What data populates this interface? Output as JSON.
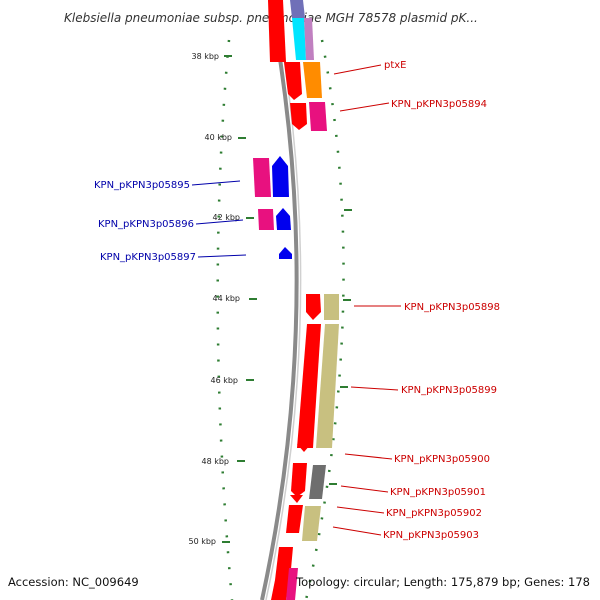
{
  "title": "Klebsiella pneumoniae subsp. pneumoniae MGH 78578 plasmid pK...",
  "footer": {
    "accession": "Accession: NC_009649",
    "summary": "Topology: circular; Length: 175,879 bp; Genes: 178"
  },
  "colors": {
    "forward_label": "#cc0000",
    "reverse_label": "#0000aa",
    "backbone": "#8a8a8a",
    "gc_skew": "#2e7d32",
    "cds_forward": "#ff0000",
    "cds_reverse": "#0000ee",
    "pink": "#e8117f",
    "khaki": "#c8c080",
    "orange": "#ff8c00",
    "gray": "#6e6e6e",
    "cyan": "#00e5ff",
    "purple": "#8080c0"
  },
  "ticks": [
    "38 kbp",
    "40 kbp",
    "42 kbp",
    "44 kbp",
    "46 kbp",
    "48 kbp",
    "50 kbp"
  ],
  "labels": {
    "ptxE": "ptxE",
    "p05894": "KPN_pKPN3p05894",
    "p05895": "KPN_pKPN3p05895",
    "p05896": "KPN_pKPN3p05896",
    "p05897": "KPN_pKPN3p05897",
    "p05898": "KPN_pKPN3p05898",
    "p05899": "KPN_pKPN3p05899",
    "p05900": "KPN_pKPN3p05900",
    "p05901": "KPN_pKPN3p05901",
    "p05902": "KPN_pKPN3p05902",
    "p05903": "KPN_pKPN3p05903"
  }
}
